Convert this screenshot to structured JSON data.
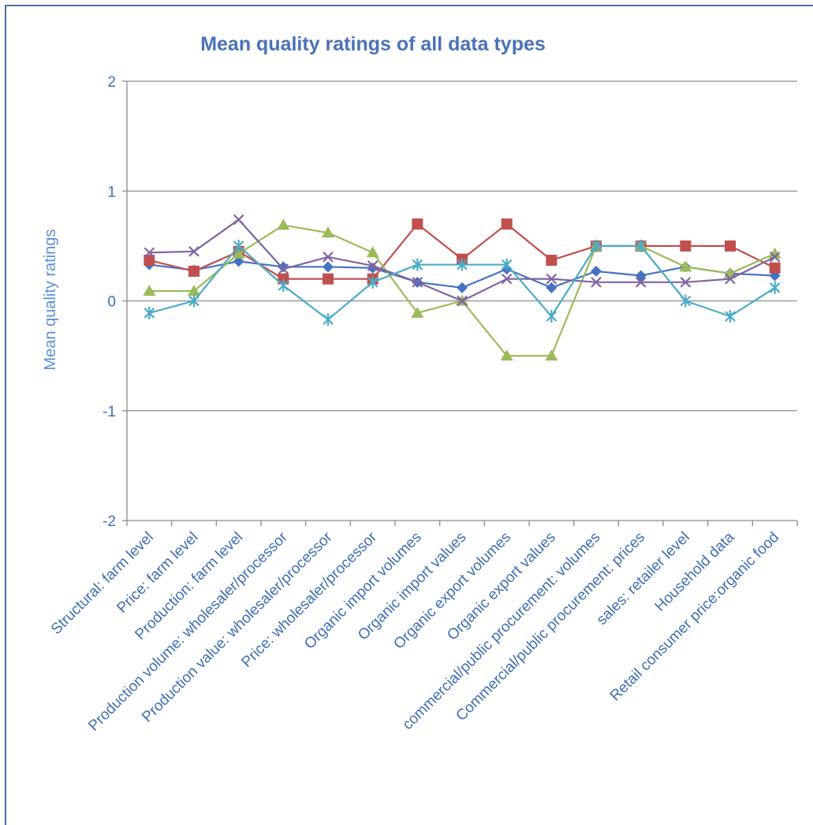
{
  "chart_data": {
    "type": "line",
    "title": "Mean quality ratings of all data types",
    "xlabel": "",
    "ylabel": "Mean quality ratings",
    "ylim": [
      -2,
      2
    ],
    "yticks": [
      -2,
      -1,
      0,
      1,
      2
    ],
    "grid": true,
    "legend": "none",
    "categories": [
      "Structural: farm level",
      "Price: farm level",
      "Production: farm level",
      "Production volume: wholesaler/processor",
      "Production value: wholesaler/processor",
      "Price: wholesaler/processor",
      "Organic import volumes",
      "Organic import values",
      "Organic export volumes",
      "Organic export values",
      "commercial/public procurement: volumes",
      "Commercial/public procurement: prices",
      "sales: retailer level",
      "Household data",
      "Retail consumer price:organic food"
    ],
    "series": [
      {
        "color": "#4472c4",
        "marker": "diamond",
        "values": [
          0.33,
          0.28,
          0.36,
          0.31,
          0.31,
          0.3,
          0.17,
          0.12,
          0.29,
          0.12,
          0.27,
          0.23,
          0.31,
          0.25,
          0.23
        ]
      },
      {
        "color": "#c0504d",
        "marker": "square",
        "values": [
          0.37,
          0.27,
          0.45,
          0.2,
          0.2,
          0.2,
          0.7,
          0.38,
          0.7,
          0.37,
          0.5,
          0.5,
          0.5,
          0.5,
          0.3
        ]
      },
      {
        "color": "#9bbb59",
        "marker": "triangle",
        "values": [
          0.09,
          0.09,
          0.43,
          0.69,
          0.62,
          0.44,
          -0.11,
          0.0,
          -0.5,
          -0.5,
          0.5,
          0.5,
          0.31,
          0.25,
          0.43
        ]
      },
      {
        "color": "#8064a2",
        "marker": "x",
        "values": [
          0.44,
          0.45,
          0.74,
          0.29,
          0.4,
          0.32,
          0.17,
          0.0,
          0.2,
          0.2,
          0.17,
          0.17,
          0.17,
          0.2,
          0.4
        ]
      },
      {
        "color": "#4bacc6",
        "marker": "star",
        "values": [
          -0.11,
          0.0,
          0.5,
          0.14,
          -0.17,
          0.17,
          0.33,
          0.33,
          0.33,
          -0.14,
          0.5,
          0.5,
          0.0,
          -0.14,
          0.12
        ]
      }
    ]
  }
}
